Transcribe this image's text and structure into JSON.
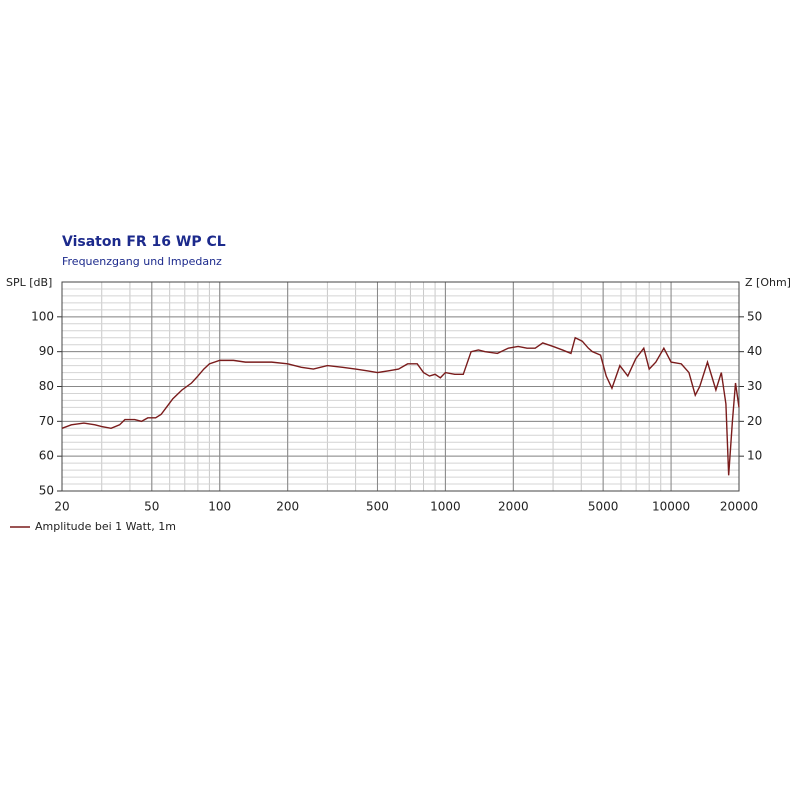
{
  "chart_data": {
    "type": "line",
    "title": "Visaton FR 16 WP CL",
    "subtitle": "Frequenzgang und Impedanz",
    "y_label": "SPL [dB]",
    "y2_label": "Z [Ohm]",
    "log_x": true,
    "grid": true,
    "minor_grid": true,
    "xlim": [
      20,
      20000
    ],
    "xticks": [
      20,
      50,
      100,
      200,
      500,
      1000,
      2000,
      5000,
      10000,
      20000
    ],
    "ylim": [
      50,
      110
    ],
    "yticks": [
      50,
      60,
      70,
      80,
      90,
      100
    ],
    "y2lim": [
      0,
      60
    ],
    "y2ticks": [
      10,
      20,
      30,
      40,
      50
    ],
    "legend": "bottom-left",
    "x": [
      20,
      22,
      25,
      28,
      30,
      33,
      36,
      38,
      42,
      45,
      48,
      52,
      55,
      58,
      62,
      68,
      75,
      80,
      85,
      90,
      100,
      115,
      130,
      150,
      170,
      200,
      230,
      260,
      300,
      350,
      400,
      450,
      500,
      560,
      620,
      680,
      750,
      800,
      850,
      900,
      950,
      1000,
      1100,
      1200,
      1300,
      1400,
      1500,
      1700,
      1900,
      2100,
      2300,
      2500,
      2700,
      3000,
      3300,
      3600,
      3760,
      4040,
      4300,
      4480,
      4870,
      5160,
      5470,
      5930,
      6430,
      6980,
      7570,
      8000,
      8560,
      9290,
      10000,
      11100,
      12000,
      12800,
      13400,
      14500,
      15800,
      16700,
      17500,
      18000,
      18700,
      19300,
      20000
    ],
    "series": [
      {
        "name": "Amplitude bei 1 Watt, 1m",
        "color": "#7a1c1c",
        "values": [
          68,
          69,
          69.5,
          69,
          68.5,
          68,
          69,
          70.5,
          70.5,
          70,
          71,
          71,
          72,
          74,
          76.5,
          79,
          81,
          83,
          85,
          86.5,
          87.5,
          87.5,
          87,
          87,
          87,
          86.5,
          85.5,
          85,
          86,
          85.5,
          85,
          84.5,
          84,
          84.5,
          85,
          86.5,
          86.5,
          84,
          83,
          83.5,
          82.5,
          84,
          83.5,
          83.5,
          90,
          90.5,
          90,
          89.5,
          91,
          91.5,
          91,
          91,
          92.5,
          91.5,
          90.5,
          89.5,
          94,
          93,
          91,
          90,
          89,
          83,
          79.5,
          86,
          83,
          88,
          91,
          85,
          87,
          91,
          87,
          86.5,
          84,
          77.5,
          80,
          87,
          79,
          84,
          75,
          54.5,
          70,
          81,
          74
        ]
      }
    ]
  }
}
